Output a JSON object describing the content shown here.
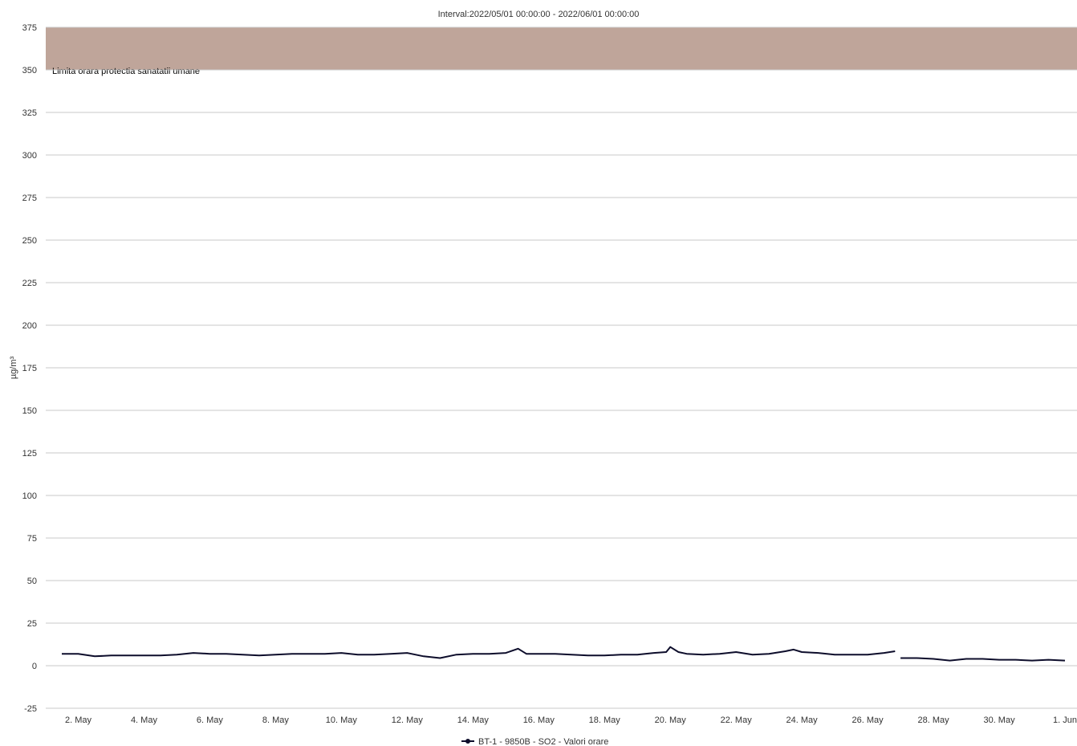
{
  "chart_data": {
    "type": "line",
    "title": "Interval:2022/05/01 00:00:00 - 2022/06/01 00:00:00",
    "ylabel": "µg/m³",
    "xlabel": "",
    "ylim": [
      -25,
      375
    ],
    "y_ticks": [
      375,
      350,
      325,
      300,
      275,
      250,
      225,
      200,
      175,
      150,
      125,
      100,
      75,
      50,
      25,
      0,
      -25
    ],
    "x_range": [
      "2022-05-01",
      "2022-06-01"
    ],
    "x_ticks": [
      {
        "date": "2022-05-02",
        "label": "2. May"
      },
      {
        "date": "2022-05-04",
        "label": "4. May"
      },
      {
        "date": "2022-05-06",
        "label": "6. May"
      },
      {
        "date": "2022-05-08",
        "label": "8. May"
      },
      {
        "date": "2022-05-10",
        "label": "10. May"
      },
      {
        "date": "2022-05-12",
        "label": "12. May"
      },
      {
        "date": "2022-05-14",
        "label": "14. May"
      },
      {
        "date": "2022-05-16",
        "label": "16. May"
      },
      {
        "date": "2022-05-18",
        "label": "18. May"
      },
      {
        "date": "2022-05-20",
        "label": "20. May"
      },
      {
        "date": "2022-05-22",
        "label": "22. May"
      },
      {
        "date": "2022-05-24",
        "label": "24. May"
      },
      {
        "date": "2022-05-26",
        "label": "26. May"
      },
      {
        "date": "2022-05-28",
        "label": "28. May"
      },
      {
        "date": "2022-05-30",
        "label": "30. May"
      },
      {
        "date": "2022-06-01",
        "label": "1. Jun"
      }
    ],
    "plot_band": {
      "from": 350,
      "to": 375,
      "label": "Limita orara protectia sanatatii umane",
      "color": "#bfa59a"
    },
    "series": [
      {
        "name": "BT-1 - 9850B - SO2 - Valori orare",
        "color": "#0d0d2b",
        "segments": [
          [
            [
              "2022-05-01 12:00",
              7
            ],
            [
              "2022-05-02 00:00",
              7
            ],
            [
              "2022-05-02 12:00",
              5.5
            ],
            [
              "2022-05-03 00:00",
              6
            ],
            [
              "2022-05-03 12:00",
              6
            ],
            [
              "2022-05-04 00:00",
              6
            ],
            [
              "2022-05-04 12:00",
              6
            ],
            [
              "2022-05-05 00:00",
              6.5
            ],
            [
              "2022-05-05 12:00",
              7.5
            ],
            [
              "2022-05-06 00:00",
              7
            ],
            [
              "2022-05-06 12:00",
              7
            ],
            [
              "2022-05-07 00:00",
              6.5
            ],
            [
              "2022-05-07 12:00",
              6
            ],
            [
              "2022-05-08 00:00",
              6.5
            ],
            [
              "2022-05-08 12:00",
              7
            ],
            [
              "2022-05-09 00:00",
              7
            ],
            [
              "2022-05-09 12:00",
              7
            ],
            [
              "2022-05-10 00:00",
              7.5
            ],
            [
              "2022-05-10 12:00",
              6.5
            ],
            [
              "2022-05-11 00:00",
              6.5
            ],
            [
              "2022-05-11 12:00",
              7
            ],
            [
              "2022-05-12 00:00",
              7.5
            ],
            [
              "2022-05-12 12:00",
              5.5
            ],
            [
              "2022-05-13 00:00",
              4.5
            ],
            [
              "2022-05-13 12:00",
              6.5
            ],
            [
              "2022-05-14 00:00",
              7
            ],
            [
              "2022-05-14 12:00",
              7
            ],
            [
              "2022-05-15 00:00",
              7.5
            ],
            [
              "2022-05-15 09:00",
              10
            ],
            [
              "2022-05-15 15:00",
              7
            ],
            [
              "2022-05-16 00:00",
              7
            ],
            [
              "2022-05-16 12:00",
              7
            ],
            [
              "2022-05-17 00:00",
              6.5
            ],
            [
              "2022-05-17 12:00",
              6
            ],
            [
              "2022-05-18 00:00",
              6
            ],
            [
              "2022-05-18 12:00",
              6.5
            ],
            [
              "2022-05-19 00:00",
              6.5
            ],
            [
              "2022-05-19 12:00",
              7.5
            ],
            [
              "2022-05-19 21:00",
              8
            ],
            [
              "2022-05-20 00:00",
              11
            ],
            [
              "2022-05-20 06:00",
              8
            ],
            [
              "2022-05-20 12:00",
              7
            ],
            [
              "2022-05-21 00:00",
              6.5
            ],
            [
              "2022-05-21 12:00",
              7
            ],
            [
              "2022-05-22 00:00",
              8
            ],
            [
              "2022-05-22 12:00",
              6.5
            ],
            [
              "2022-05-23 00:00",
              7
            ],
            [
              "2022-05-23 12:00",
              8.5
            ],
            [
              "2022-05-23 18:00",
              9.5
            ],
            [
              "2022-05-24 00:00",
              8
            ],
            [
              "2022-05-24 12:00",
              7.5
            ],
            [
              "2022-05-25 00:00",
              6.5
            ],
            [
              "2022-05-25 12:00",
              6.5
            ],
            [
              "2022-05-26 00:00",
              6.5
            ],
            [
              "2022-05-26 12:00",
              7.5
            ],
            [
              "2022-05-26 20:00",
              8.5
            ]
          ],
          [
            [
              "2022-05-27 00:00",
              4.5
            ],
            [
              "2022-05-27 12:00",
              4.5
            ],
            [
              "2022-05-28 00:00",
              4
            ],
            [
              "2022-05-28 12:00",
              3
            ],
            [
              "2022-05-29 00:00",
              4
            ],
            [
              "2022-05-29 12:00",
              4
            ],
            [
              "2022-05-30 00:00",
              3.5
            ],
            [
              "2022-05-30 12:00",
              3.5
            ],
            [
              "2022-05-31 00:00",
              3
            ],
            [
              "2022-05-31 12:00",
              3.5
            ],
            [
              "2022-06-01 00:00",
              3
            ]
          ]
        ]
      }
    ],
    "grid": true,
    "legend_position": "bottom-center"
  }
}
